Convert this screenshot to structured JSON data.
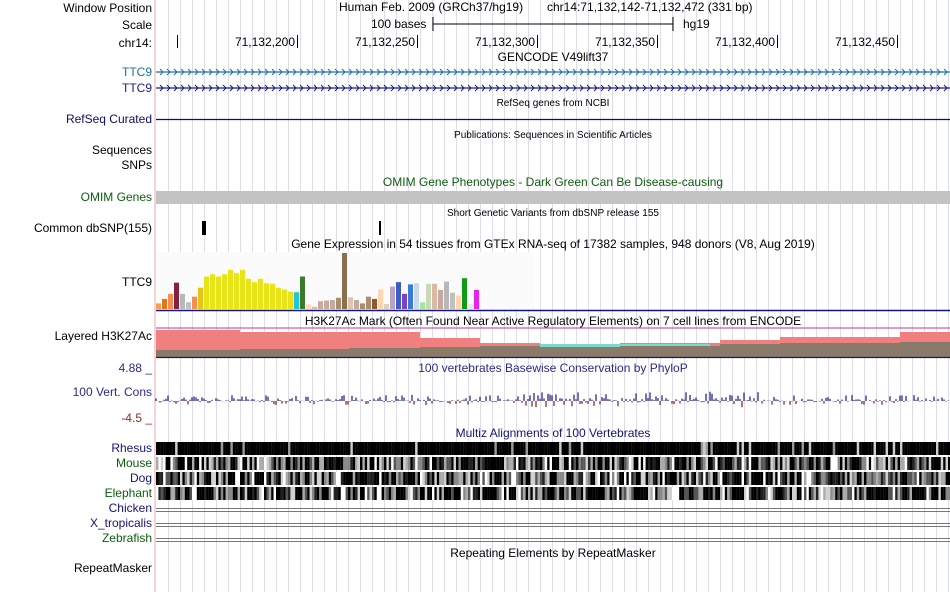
{
  "header": {
    "window_position_label": "Window Position",
    "scale_label": "Scale",
    "chrom_label": "chr14:",
    "assembly": "Human Feb. 2009 (GRCh37/hg19)",
    "position": "chr14:71,132,142-71,132,472 (331 bp)",
    "scale_text": "100 bases",
    "scale_db": "hg19",
    "ruler_ticks": [
      "71,132,200",
      "71,132,250",
      "71,132,300",
      "71,132,350",
      "71,132,400",
      "71,132,450"
    ]
  },
  "tracks": {
    "gencode": {
      "title": "GENCODE V49lift37",
      "items": [
        "TTC9",
        "TTC9"
      ],
      "colors": [
        "#1a6fa8",
        "#1a1a8a"
      ]
    },
    "refseq": {
      "title": "RefSeq genes from NCBI",
      "label": "RefSeq Curated",
      "color": "#0d0d6b"
    },
    "publications": {
      "title": "Publications: Sequences in Scientific Articles",
      "labels": [
        "Sequences",
        "SNPs"
      ]
    },
    "omim": {
      "title": "OMIM Gene Phenotypes - Dark Green Can Be Disease-causing",
      "label": "OMIM Genes",
      "color": "#0b5d0b"
    },
    "dbsnp": {
      "title": "Short Genetic Variants from dbSNP release 155",
      "label": "Common dbSNP(155)"
    },
    "gtex": {
      "title": "Gene Expression in 54 tissues from GTEx RNA-seq of 17382 samples, 948 donors (V8, Aug 2019)",
      "label": "TTC9",
      "values": [
        0.1,
        0.18,
        0.27,
        0.47,
        0.27,
        0.12,
        0.22,
        0.38,
        0.58,
        0.62,
        0.58,
        0.62,
        0.7,
        0.64,
        0.7,
        0.54,
        0.48,
        0.54,
        0.46,
        0.45,
        0.38,
        0.35,
        0.31,
        0.3,
        0.58,
        0.08,
        0.04,
        0.14,
        0.15,
        0.16,
        0.2,
        1.0,
        0.21,
        0.16,
        0.1,
        0.22,
        0.18,
        0.35,
        0.09,
        0.4,
        0.48,
        0.27,
        0.44,
        0.46,
        0.12,
        0.45,
        0.45,
        0.34,
        0.49,
        0.29,
        0.24,
        0.55,
        0.09,
        0.34
      ],
      "colors": [
        "#f79d5a",
        "#e6741d",
        "#f2904f",
        "#871f40",
        "#b8b8b8",
        "#c0c0c0",
        "#f2904f",
        "#e8c217",
        "#e8e417",
        "#e8e417",
        "#e8e417",
        "#e8e417",
        "#e8e417",
        "#e8e417",
        "#e8e417",
        "#e8e417",
        "#e8e417",
        "#e8e417",
        "#e8e417",
        "#e8e417",
        "#e8e417",
        "#e8e417",
        "#e8e417",
        "#1fc8d6",
        "#3a7a29",
        "#ffdab9",
        "#ddb8a5",
        "#c9a99e",
        "#c9a99e",
        "#c9a99e",
        "#ab8c6e",
        "#8b6f4e",
        "#e0c4b3",
        "#c9a99e",
        "#ab8c6e",
        "#ab8c6e",
        "#8c5a2e",
        "#ffd5b0",
        "#ddd2c2",
        "#b9a2c6",
        "#3d5ec7",
        "#7b41c7",
        "#3a7ad6",
        "#c8d9e8",
        "#a0e8a0",
        "#c8d9b8",
        "#ddb8a5",
        "#c9a99e",
        "#b8b8b8",
        "#c0c0c0",
        "#ffd5b0",
        "#109b14",
        "#e8e8e8",
        "#ee20ee"
      ]
    },
    "h3k27ac": {
      "title": "H3K27Ac Mark (Often Found Near Active Regulatory Elements) on 7 cell lines from ENCODE",
      "label": "Layered H3K27Ac"
    },
    "phylop": {
      "title": "100 vertebrates Basewise Conservation by PhyloP",
      "label": "100 Vert. Cons",
      "max": "4.88 _",
      "min": "-4.5 _",
      "pos_color": "#2a2a8c",
      "neg_color": "#8b2a2a"
    },
    "multiz": {
      "title": "Multiz Alignments of 100 Vertebrates",
      "species": [
        "Rhesus",
        "Mouse",
        "Dog",
        "Elephant",
        "Chicken",
        "X_tropicalis",
        "Zebrafish"
      ],
      "species_colors": [
        "#14147a",
        "#0b5d0b",
        "#14147a",
        "#0b5d0b",
        "#14147a",
        "#14147a",
        "#0b5d0b"
      ]
    },
    "repeatmasker": {
      "title": "Repeating Elements by RepeatMasker",
      "label": "RepeatMasker"
    }
  }
}
